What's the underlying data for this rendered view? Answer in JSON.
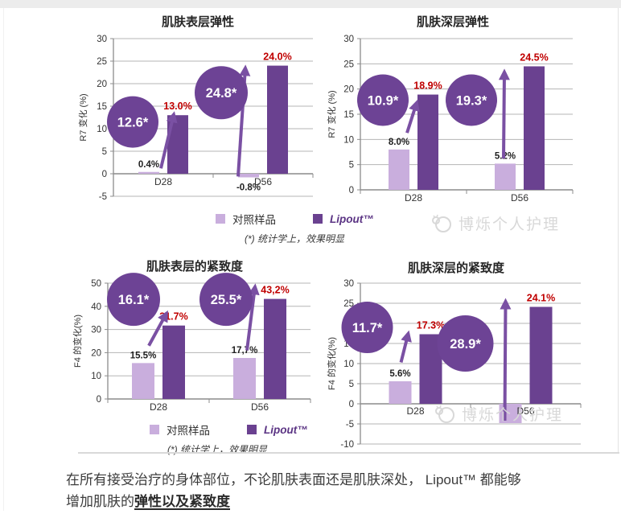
{
  "colors": {
    "control": "#c9aedd",
    "lipout": "#6a4190",
    "circle": "#6d4395",
    "arrow": "#7a50a3",
    "red_label": "#c00000",
    "black_label": "#1f1f1f",
    "grid": "#b5b5b5",
    "axis": "#8c8c8c",
    "tick_text": "#333333",
    "title_text": "#262626"
  },
  "legend": {
    "items": [
      {
        "label": "对照样品",
        "series": "control"
      },
      {
        "label": "Lipout™",
        "series": "lipout"
      }
    ],
    "note": "(*) 统计学上，效果明显"
  },
  "watermark": {
    "text": "博烁个人护理"
  },
  "footer": {
    "line1": "在所有接受治疗的身体部位，不论肌肤表面还是肌肤深处， Lipout™ 都能够",
    "line2_prefix": "增加肌肤的",
    "line2_emphasis": "弹性以及紧致度"
  },
  "chart_data": [
    {
      "type": "bar",
      "title": "肌肤表层弹性",
      "ylabel": "R7 变化 (%)",
      "ylim": [
        -5,
        30
      ],
      "ytick_step": 5,
      "grid": true,
      "legend_position": "below-shared",
      "categories": [
        "D28",
        "D56"
      ],
      "series": [
        {
          "name": "对照样品",
          "values": [
            0.4,
            -0.8
          ],
          "labels": [
            "0.4%",
            "-0.8%"
          ]
        },
        {
          "name": "Lipout™",
          "values": [
            13.0,
            24.0
          ],
          "labels": [
            "13.0%",
            "24.0%"
          ]
        }
      ],
      "annotations": {
        "circles": [
          {
            "text": "12.6*",
            "group": 0,
            "dx": -38,
            "val": 11.5,
            "r": 32
          },
          {
            "text": "24.8*",
            "group": 1,
            "dx": -52,
            "val": 18,
            "r": 33
          }
        ],
        "arrows": [
          {
            "group": 0,
            "dx1": -3,
            "val1": 1.2,
            "dx2": 13,
            "val2": 13.2
          },
          {
            "group": 1,
            "dx1": -31,
            "val1": -0.6,
            "dx2": -22,
            "val2": 23.5
          }
        ]
      }
    },
    {
      "type": "bar",
      "title": "肌肤深层弹性",
      "ylabel": "R7 变化 (%)",
      "ylim": [
        0,
        30
      ],
      "ytick_step": 5,
      "grid": true,
      "legend_position": "below-shared",
      "categories": [
        "D28",
        "D56"
      ],
      "series": [
        {
          "name": "对照样品",
          "values": [
            8.0,
            5.2
          ],
          "labels": [
            "8.0%",
            "5.2%"
          ]
        },
        {
          "name": "Lipout™",
          "values": [
            18.9,
            24.5
          ],
          "labels": [
            "18.9%",
            "24.5%"
          ]
        }
      ],
      "annotations": {
        "circles": [
          {
            "text": "10.9*",
            "group": 0,
            "dx": -38,
            "val": 17.8,
            "r": 32
          },
          {
            "text": "19.3*",
            "group": 1,
            "dx": -60,
            "val": 17.8,
            "r": 32
          }
        ],
        "arrows": [
          {
            "group": 0,
            "dx1": -8,
            "val1": 11.3,
            "dx2": 4,
            "val2": 17.3
          },
          {
            "group": 1,
            "dx1": -20,
            "val1": 6.2,
            "dx2": -19,
            "val2": 23.4
          }
        ]
      }
    },
    {
      "type": "bar",
      "title": "肌肤表层的紧致度",
      "ylabel": "F4 的变化(%)",
      "ylim": [
        0,
        50
      ],
      "ytick_step": 10,
      "grid": true,
      "legend_position": "below-shared",
      "categories": [
        "D28",
        "D56"
      ],
      "series": [
        {
          "name": "对照样品",
          "values": [
            15.5,
            17.7
          ],
          "labels": [
            "15.5%",
            "17,7%"
          ]
        },
        {
          "name": "Lipout™",
          "values": [
            31.7,
            43.2
          ],
          "labels": [
            "31.7%",
            "43,2%"
          ]
        }
      ],
      "annotations": {
        "circles": [
          {
            "text": "16.1*",
            "group": 0,
            "dx": -31,
            "val": 43,
            "r": 33
          },
          {
            "text": "25.5*",
            "group": 1,
            "dx": -42,
            "val": 43,
            "r": 33
          }
        ],
        "arrows": [
          {
            "group": 0,
            "dx1": -12,
            "val1": 23,
            "dx2": 10,
            "val2": 37
          },
          {
            "group": 1,
            "dx1": -16,
            "val1": 21,
            "dx2": -6,
            "val2": 48.5
          }
        ]
      }
    },
    {
      "type": "bar",
      "title": "肌肤深层的紧致度",
      "ylabel": "F4 的变化(%)",
      "ylim": [
        -10,
        30
      ],
      "ytick_step": 5,
      "grid": true,
      "legend_position": "below-shared",
      "categories": [
        "D28",
        "D56"
      ],
      "series": [
        {
          "name": "对照样品",
          "values": [
            5.6,
            -4.8
          ],
          "labels": [
            "5.6%",
            ""
          ]
        },
        {
          "name": "Lipout™",
          "values": [
            17.3,
            24.1
          ],
          "labels": [
            "17.3%",
            "24.1%"
          ]
        }
      ],
      "annotations": {
        "circles": [
          {
            "text": "11.7*",
            "group": 0,
            "dx": -60,
            "val": 19,
            "r": 32
          },
          {
            "text": "28.9*",
            "group": 1,
            "dx": -75,
            "val": 15,
            "r": 35
          }
        ],
        "arrows": [
          {
            "group": 0,
            "dx1": -18,
            "val1": 10.3,
            "dx2": -9,
            "val2": 17.5
          },
          {
            "group": 1,
            "dx1": -26,
            "val1": -4.2,
            "dx2": -25,
            "val2": 25.5
          }
        ]
      }
    }
  ]
}
